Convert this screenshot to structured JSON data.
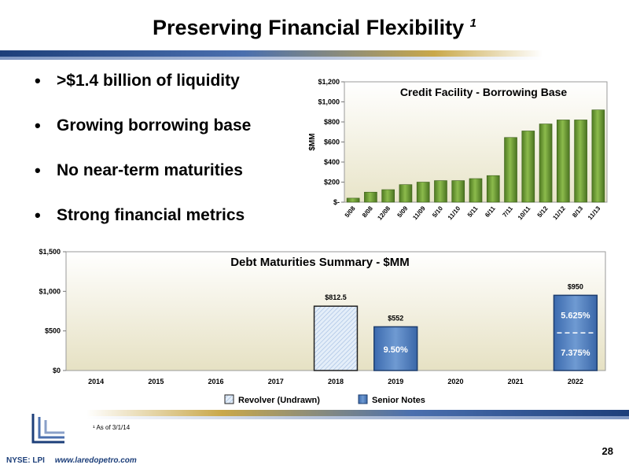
{
  "title": "Preserving Financial Flexibility",
  "title_superscript": "1",
  "bullets": [
    ">$1.4 billion of liquidity",
    "Growing borrowing base",
    "No near-term maturities",
    "Strong financial metrics"
  ],
  "bullet_glyph": "•",
  "footnote": "¹ As of 3/1/14",
  "footer": {
    "ticker": "NYSE: LPI",
    "url": "www.laredopetro.com",
    "page": "28"
  },
  "colors": {
    "navy": "#1d3f7a",
    "gold": "#c9a84a",
    "bar_green": "#6b9a35",
    "bar_blue": "#4f7fc0"
  },
  "chart_data": [
    {
      "type": "bar",
      "title": "Credit Facility - Borrowing Base",
      "ylabel": "$MM",
      "xlabel": "",
      "categories": [
        "5/08",
        "8/08",
        "12/08",
        "5/09",
        "11/09",
        "5/10",
        "11/10",
        "5/11",
        "6/11",
        "7/11",
        "10/11",
        "5/12",
        "11/12",
        "8/13",
        "11/13"
      ],
      "values": [
        40,
        100,
        125,
        175,
        200,
        215,
        215,
        235,
        265,
        645,
        710,
        780,
        820,
        820,
        920
      ],
      "ylim": [
        0,
        1200
      ],
      "yticks": [
        0,
        200,
        400,
        600,
        800,
        1000,
        1200
      ],
      "ytick_labels": [
        "$-",
        "$200",
        "$400",
        "$600",
        "$800",
        "$1,000",
        "$1,200"
      ],
      "grid": false
    },
    {
      "type": "bar",
      "title": "Debt Maturities Summary - $MM",
      "xlabel": "",
      "ylabel": "",
      "categories": [
        "2014",
        "2015",
        "2016",
        "2017",
        "2018",
        "2019",
        "2020",
        "2021",
        "2022"
      ],
      "series": [
        {
          "name": "Revolver (Undrawn)",
          "values": [
            0,
            0,
            0,
            0,
            812.5,
            0,
            0,
            0,
            0
          ]
        },
        {
          "name": "Senior Notes",
          "values": [
            0,
            0,
            0,
            0,
            0,
            552,
            0,
            0,
            950
          ]
        }
      ],
      "data_labels": [
        "",
        "",
        "",
        "",
        "$812.5",
        "$552",
        "",
        "",
        "$950"
      ],
      "inner_labels": {
        "2019": [
          "9.50%"
        ],
        "2022": [
          "5.625%",
          "7.375%"
        ]
      },
      "ylim": [
        0,
        1500
      ],
      "yticks": [
        0,
        500,
        1000,
        1500
      ],
      "ytick_labels": [
        "$0",
        "$500",
        "$1,000",
        "$1,500"
      ],
      "legend_placement": "bottom",
      "grid": false
    }
  ]
}
